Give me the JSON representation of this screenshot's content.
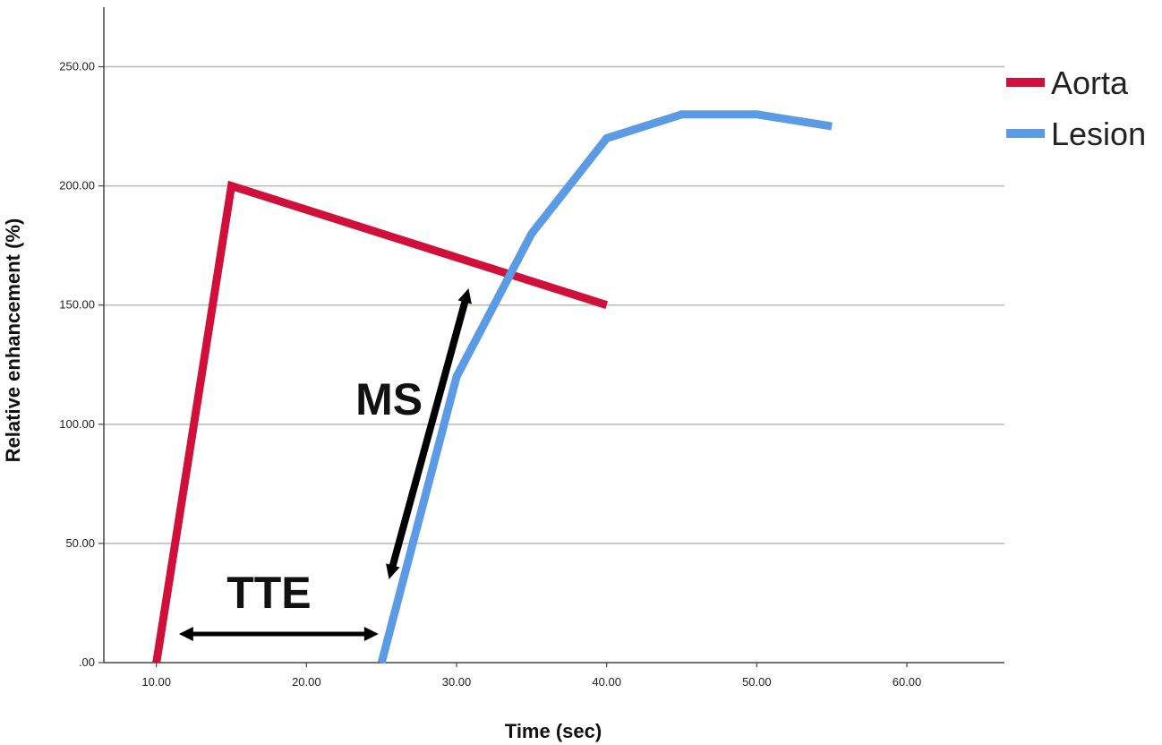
{
  "chart_data": {
    "type": "line",
    "title": "",
    "xlabel": "Time (sec)",
    "ylabel": "Relative enhancement (%)",
    "xlim": [
      6.5,
      66.5
    ],
    "ylim": [
      0,
      275
    ],
    "x_ticks": [
      {
        "value": 10,
        "label": "10.00"
      },
      {
        "value": 20,
        "label": "20.00"
      },
      {
        "value": 30,
        "label": "30.00"
      },
      {
        "value": 40,
        "label": "40.00"
      },
      {
        "value": 50,
        "label": "50.00"
      },
      {
        "value": 60,
        "label": "60.00"
      }
    ],
    "y_ticks": [
      {
        "value": 0,
        "label": ".00"
      },
      {
        "value": 50,
        "label": "50.00"
      },
      {
        "value": 100,
        "label": "100.00"
      },
      {
        "value": 150,
        "label": "150.00"
      },
      {
        "value": 200,
        "label": "200.00"
      },
      {
        "value": 250,
        "label": "250.00"
      }
    ],
    "grid": "horizontal",
    "legend_position": "top-right",
    "series": [
      {
        "name": "Aorta",
        "color": "#d0103a",
        "points": [
          {
            "x": 10,
            "y": 0
          },
          {
            "x": 15,
            "y": 200
          },
          {
            "x": 40,
            "y": 150
          }
        ]
      },
      {
        "name": "Lesion",
        "color": "#5b9be6",
        "points": [
          {
            "x": 25,
            "y": 0
          },
          {
            "x": 30,
            "y": 120
          },
          {
            "x": 35,
            "y": 180
          },
          {
            "x": 40,
            "y": 220
          },
          {
            "x": 45,
            "y": 230
          },
          {
            "x": 50,
            "y": 230
          },
          {
            "x": 55,
            "y": 225
          }
        ]
      }
    ],
    "annotations": [
      {
        "label": "TTE",
        "arrow_color": "#000000",
        "arrow_from": {
          "x": 11.5,
          "y": 12
        },
        "arrow_to": {
          "x": 24.8,
          "y": 12
        },
        "label_at": {
          "x": 17.5,
          "y": 23
        }
      },
      {
        "label": "MS",
        "arrow_color": "#000000",
        "arrow_from": {
          "x": 25.5,
          "y": 35
        },
        "arrow_to": {
          "x": 30.8,
          "y": 157
        },
        "label_at": {
          "x": 25.5,
          "y": 104
        }
      }
    ]
  }
}
